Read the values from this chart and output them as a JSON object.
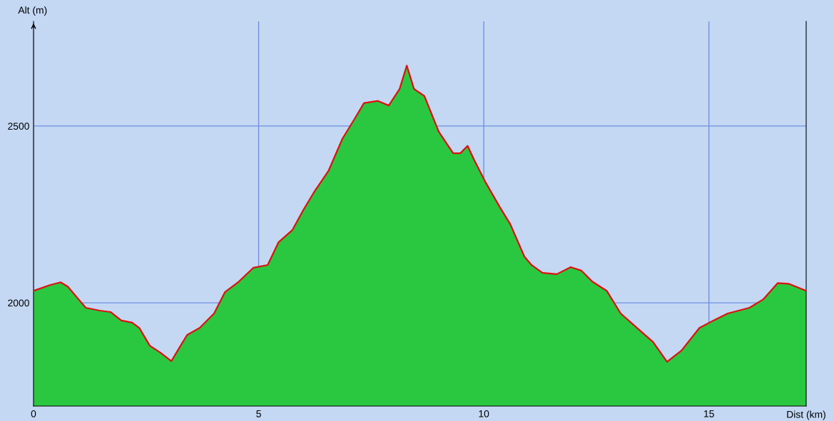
{
  "chart_data": {
    "type": "area",
    "xlabel": "Dist (km)",
    "ylabel": "Alt (m)",
    "x": [
      0,
      0.36,
      0.6,
      0.76,
      1.0,
      1.16,
      1.47,
      1.71,
      1.95,
      2.19,
      2.35,
      2.58,
      2.82,
      3.06,
      3.22,
      3.41,
      3.69,
      4.01,
      4.25,
      4.56,
      4.88,
      5.2,
      5.44,
      5.75,
      5.99,
      6.23,
      6.55,
      6.86,
      7.1,
      7.34,
      7.65,
      7.89,
      8.13,
      8.29,
      8.45,
      8.68,
      9.0,
      9.32,
      9.48,
      9.64,
      9.79,
      10.03,
      10.35,
      10.59,
      10.9,
      11.06,
      11.3,
      11.62,
      11.93,
      12.17,
      12.41,
      12.73,
      13.04,
      13.44,
      13.76,
      14.07,
      14.39,
      14.79,
      15.1,
      15.42,
      15.9,
      16.21,
      16.53,
      16.77,
      17.16
    ],
    "series": [
      {
        "color": "#2ac840",
        "values": [
          2034,
          2050,
          2058,
          2046,
          2010,
          1986,
          1978,
          1974,
          1950,
          1944,
          1929,
          1879,
          1859,
          1835,
          1869,
          1909,
          1929,
          1970,
          2030,
          2060,
          2099,
          2107,
          2171,
          2206,
          2262,
          2313,
          2373,
          2464,
          2514,
          2565,
          2571,
          2558,
          2605,
          2671,
          2605,
          2585,
          2484,
          2423,
          2423,
          2444,
          2403,
          2343,
          2272,
          2222,
          2131,
          2107,
          2085,
          2081,
          2101,
          2091,
          2060,
          2034,
          1970,
          1925,
          1889,
          1833,
          1865,
          1929,
          1950,
          1970,
          1986,
          2010,
          2056,
          2054,
          2034
        ]
      },
      {
        "type": "line",
        "color": "#e01010",
        "values": [
          2034,
          2050,
          2058,
          2046,
          2010,
          1986,
          1978,
          1974,
          1950,
          1944,
          1929,
          1879,
          1859,
          1835,
          1869,
          1909,
          1929,
          1970,
          2030,
          2060,
          2099,
          2107,
          2171,
          2206,
          2262,
          2313,
          2373,
          2464,
          2514,
          2565,
          2571,
          2558,
          2605,
          2671,
          2605,
          2585,
          2484,
          2423,
          2423,
          2444,
          2403,
          2343,
          2272,
          2222,
          2131,
          2107,
          2085,
          2081,
          2101,
          2091,
          2060,
          2034,
          1970,
          1925,
          1889,
          1833,
          1865,
          1929,
          1950,
          1970,
          1986,
          2010,
          2056,
          2054,
          2034
        ]
      }
    ],
    "xlim": [
      0,
      17.16
    ],
    "ylim": [
      1708,
      2796
    ],
    "xticks": [
      0,
      5,
      10,
      15
    ],
    "yticks": [
      2000,
      2500
    ],
    "grid": true
  }
}
